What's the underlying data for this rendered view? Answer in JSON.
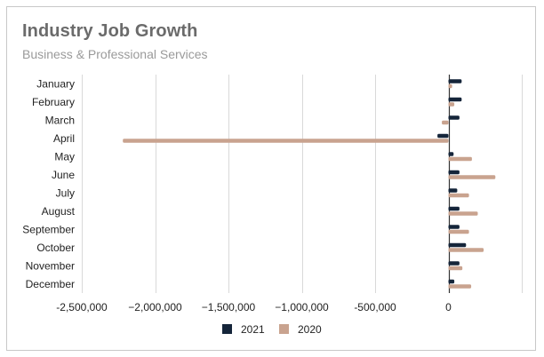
{
  "title": "Industry Job Growth",
  "subtitle": "Business & Professional Services",
  "colors": {
    "2021": "#15253a",
    "2020": "#c9a38f",
    "grid": "#d9d9d9",
    "axis": "#333333"
  },
  "chart_data": {
    "type": "bar",
    "orientation": "horizontal",
    "title": "Industry Job Growth",
    "subtitle": "Business & Professional Services",
    "categories": [
      "January",
      "February",
      "March",
      "April",
      "May",
      "June",
      "July",
      "August",
      "September",
      "October",
      "November",
      "December"
    ],
    "series": [
      {
        "name": "2021",
        "values": [
          90000,
          90000,
          75000,
          -75000,
          35000,
          75000,
          60000,
          75000,
          75000,
          120000,
          75000,
          40000
        ]
      },
      {
        "name": "2020",
        "values": [
          25000,
          40000,
          -45000,
          -2220000,
          160000,
          320000,
          140000,
          200000,
          140000,
          240000,
          95000,
          155000
        ]
      }
    ],
    "xlim": [
      -2500000,
      500000
    ],
    "xticks": [
      -2500000,
      -2000000,
      -1500000,
      -1000000,
      -500000,
      0
    ],
    "xtick_labels": [
      "-2,500,000",
      "−2,000,000",
      "−1,500,000",
      "−1,000,000",
      "-500,000",
      "0"
    ],
    "grid": true,
    "legend": "bottom"
  }
}
